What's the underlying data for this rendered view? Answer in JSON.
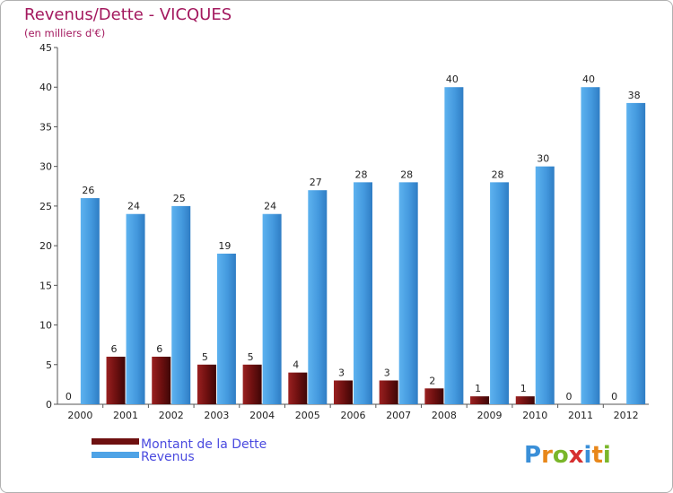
{
  "chart_data": {
    "type": "bar",
    "title": "Revenus/Dette - VICQUES",
    "subtitle": "(en milliers d'€)",
    "categories": [
      "2000",
      "2001",
      "2002",
      "2003",
      "2004",
      "2005",
      "2006",
      "2007",
      "2008",
      "2009",
      "2010",
      "2011",
      "2012"
    ],
    "series": [
      {
        "name": "Montant de la Dette",
        "color": "#7a1414",
        "values": [
          0,
          6,
          6,
          5,
          5,
          4,
          3,
          3,
          2,
          1,
          1,
          0,
          0
        ]
      },
      {
        "name": "Revenus",
        "color": "#4ea3e6",
        "values": [
          26,
          24,
          25,
          19,
          24,
          27,
          28,
          28,
          40,
          28,
          30,
          40,
          38
        ]
      }
    ],
    "yticks": [
      0,
      5,
      10,
      15,
      20,
      25,
      30,
      35,
      40,
      45
    ],
    "ylim": [
      0,
      45
    ],
    "grid": false,
    "legend": "bottom-left"
  },
  "logo": {
    "text": "Proxiti"
  }
}
